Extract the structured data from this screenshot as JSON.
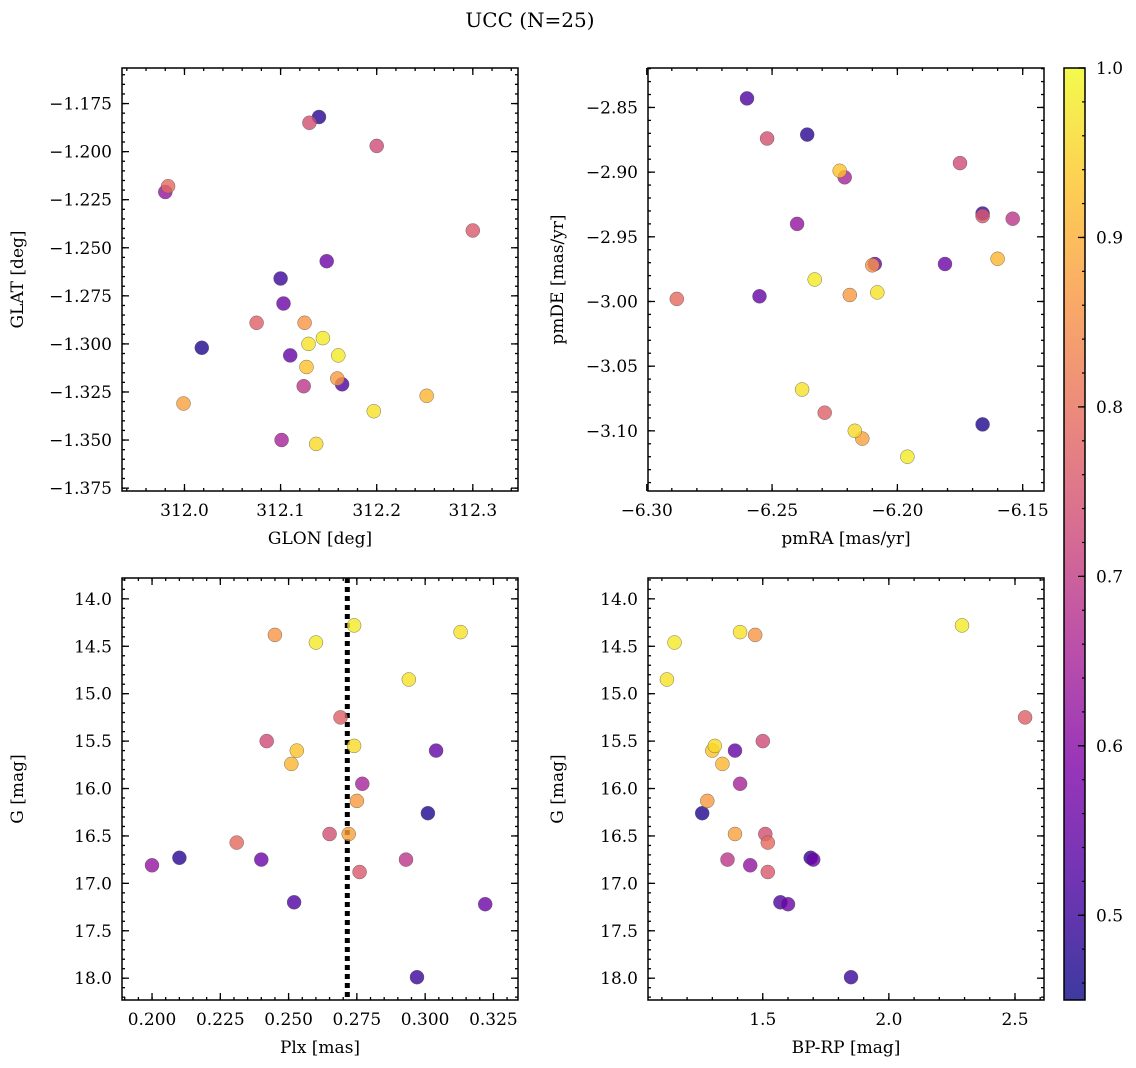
{
  "chart_data": {
    "title": "UCC (N=25)",
    "type": "scatter",
    "colorbar": {
      "label": "",
      "range": [
        0.45,
        1.0
      ],
      "ticks": [
        "0.5",
        "0.6",
        "0.7",
        "0.8",
        "0.9",
        "1.0"
      ],
      "tick_values": [
        0.5,
        0.6,
        0.7,
        0.8,
        0.9,
        1.0
      ],
      "colormap": "plasma"
    },
    "stars": [
      {
        "glon": 312.14,
        "glat": -1.182,
        "pmra": -6.236,
        "pmde": -2.871,
        "plx": 0.21,
        "g": 16.73,
        "bprp": 1.69,
        "prob": 0.48
      },
      {
        "glon": 312.13,
        "glat": -1.185,
        "pmra": -6.252,
        "pmde": -2.874,
        "plx": 0.265,
        "g": 16.48,
        "bprp": 1.51,
        "prob": 0.74
      },
      {
        "glon": 312.2,
        "glat": -1.197,
        "pmra": -6.175,
        "pmde": -2.893,
        "plx": 0.242,
        "g": 15.5,
        "bprp": 1.5,
        "prob": 0.73
      },
      {
        "glon": 311.983,
        "glat": -1.218,
        "pmra": -6.288,
        "pmde": -2.998,
        "plx": 0.231,
        "g": 16.57,
        "bprp": 1.52,
        "prob": 0.79
      },
      {
        "glon": 311.98,
        "glat": -1.221,
        "pmra": -6.24,
        "pmde": -2.94,
        "plx": 0.2,
        "g": 16.81,
        "bprp": 1.45,
        "prob": 0.62
      },
      {
        "glon": 312.3,
        "glat": -1.241,
        "pmra": -6.166,
        "pmde": -2.934,
        "plx": 0.276,
        "g": 16.88,
        "bprp": 1.52,
        "prob": 0.76
      },
      {
        "glon": 312.148,
        "glat": -1.257,
        "pmra": -6.209,
        "pmde": -2.971,
        "plx": 0.24,
        "g": 16.75,
        "bprp": 1.7,
        "prob": 0.56
      },
      {
        "glon": 312.1,
        "glat": -1.266,
        "pmra": -6.166,
        "pmde": -2.932,
        "plx": 0.297,
        "g": 17.99,
        "bprp": 1.85,
        "prob": 0.5
      },
      {
        "glon": 312.103,
        "glat": -1.279,
        "pmra": -6.181,
        "pmde": -2.971,
        "plx": 0.322,
        "g": 17.22,
        "bprp": 1.6,
        "prob": 0.56
      },
      {
        "glon": 312.075,
        "glat": -1.289,
        "pmra": -6.229,
        "pmde": -3.086,
        "plx": 0.269,
        "g": 15.25,
        "bprp": 2.54,
        "prob": 0.77
      },
      {
        "glon": 312.125,
        "glat": -1.289,
        "pmra": -6.21,
        "pmde": -2.972,
        "plx": 0.245,
        "g": 14.38,
        "bprp": 1.47,
        "prob": 0.86
      },
      {
        "glon": 312.144,
        "glat": -1.297,
        "pmra": -6.233,
        "pmde": -2.983,
        "plx": 0.274,
        "g": 14.28,
        "bprp": 2.29,
        "prob": 0.98
      },
      {
        "glon": 312.129,
        "glat": -1.3,
        "pmra": -6.208,
        "pmde": -2.993,
        "plx": 0.313,
        "g": 14.35,
        "bprp": 1.41,
        "prob": 0.97
      },
      {
        "glon": 312.018,
        "glat": -1.302,
        "pmra": -6.166,
        "pmde": -3.095,
        "plx": 0.301,
        "g": 16.26,
        "bprp": 1.26,
        "prob": 0.47
      },
      {
        "glon": 312.11,
        "glat": -1.306,
        "pmra": -6.255,
        "pmde": -2.996,
        "plx": 0.304,
        "g": 15.6,
        "bprp": 1.39,
        "prob": 0.55
      },
      {
        "glon": 312.16,
        "glat": -1.306,
        "pmra": -6.196,
        "pmde": -3.12,
        "plx": 0.26,
        "g": 14.46,
        "bprp": 1.15,
        "prob": 0.98
      },
      {
        "glon": 312.127,
        "glat": -1.312,
        "pmra": -6.223,
        "pmde": -2.899,
        "plx": 0.253,
        "g": 15.6,
        "bprp": 1.3,
        "prob": 0.93
      },
      {
        "glon": 312.159,
        "glat": -1.318,
        "pmra": -6.219,
        "pmde": -2.995,
        "plx": 0.275,
        "g": 16.13,
        "bprp": 1.28,
        "prob": 0.87
      },
      {
        "glon": 312.164,
        "glat": -1.321,
        "pmra": -6.26,
        "pmde": -2.843,
        "plx": 0.252,
        "g": 17.2,
        "bprp": 1.57,
        "prob": 0.52
      },
      {
        "glon": 312.124,
        "glat": -1.322,
        "pmra": -6.154,
        "pmde": -2.936,
        "plx": 0.293,
        "g": 16.75,
        "bprp": 1.36,
        "prob": 0.69
      },
      {
        "glon": 312.252,
        "glat": -1.327,
        "pmra": -6.16,
        "pmde": -2.967,
        "plx": 0.251,
        "g": 15.74,
        "bprp": 1.34,
        "prob": 0.91
      },
      {
        "glon": 311.999,
        "glat": -1.331,
        "pmra": -6.214,
        "pmde": -3.106,
        "plx": 0.272,
        "g": 16.48,
        "bprp": 1.39,
        "prob": 0.88
      },
      {
        "glon": 312.197,
        "glat": -1.335,
        "pmra": -6.238,
        "pmde": -3.068,
        "plx": 0.294,
        "g": 14.85,
        "bprp": 1.12,
        "prob": 0.97
      },
      {
        "glon": 312.101,
        "glat": -1.35,
        "pmra": -6.221,
        "pmde": -2.904,
        "plx": 0.277,
        "g": 15.95,
        "bprp": 1.41,
        "prob": 0.65
      },
      {
        "glon": 312.137,
        "glat": -1.352,
        "pmra": -6.217,
        "pmde": -3.1,
        "plx": 0.274,
        "g": 15.55,
        "bprp": 1.31,
        "prob": 0.96
      }
    ],
    "panels": [
      {
        "name": "glon-glat",
        "xkey": "glon",
        "ykey": "glat",
        "xlabel": "GLON [deg]",
        "ylabel": "GLAT [deg]",
        "xlim": [
          311.935,
          312.347
        ],
        "ylim": [
          -1.3765,
          -1.1565
        ],
        "y_inverted": false,
        "xticks": [
          312.0,
          312.1,
          312.2,
          312.3
        ],
        "xticklabels": [
          "312.0",
          "312.1",
          "312.2",
          "312.3"
        ],
        "xminor": 0.02,
        "yticks": [
          -1.175,
          -1.2,
          -1.225,
          -1.25,
          -1.275,
          -1.3,
          -1.325,
          -1.35,
          -1.375
        ],
        "yticklabels": [
          "−1.175",
          "−1.200",
          "−1.225",
          "−1.250",
          "−1.275",
          "−1.300",
          "−1.325",
          "−1.350",
          "−1.375"
        ],
        "yminor": 0.005
      },
      {
        "name": "pmra-pmde",
        "xkey": "pmra",
        "ykey": "pmde",
        "xlabel": "pmRA [mas/yr]",
        "ylabel": "pmDE [mas/yr]",
        "xlim": [
          -6.2995,
          -6.1415
        ],
        "ylim": [
          -3.1465,
          -2.8195
        ],
        "y_inverted": false,
        "xticks": [
          -6.3,
          -6.25,
          -6.2,
          -6.15
        ],
        "xticklabels": [
          "−6.30",
          "−6.25",
          "−6.20",
          "−6.15"
        ],
        "xminor": 0.01,
        "yticks": [
          -2.85,
          -2.9,
          -2.95,
          -3.0,
          -3.05,
          -3.1
        ],
        "yticklabels": [
          "−2.85",
          "−2.90",
          "−2.95",
          "−3.00",
          "−3.05",
          "−3.10"
        ],
        "yminor": 0.01
      },
      {
        "name": "plx-g",
        "xkey": "plx",
        "ykey": "g",
        "xlabel": "Plx [mas]",
        "ylabel": "G [mag]",
        "xlim": [
          0.189,
          0.334
        ],
        "ylim": [
          18.23,
          13.78
        ],
        "y_inverted": true,
        "xticks": [
          0.2,
          0.225,
          0.25,
          0.275,
          0.3,
          0.325
        ],
        "xticklabels": [
          "0.200",
          "0.225",
          "0.250",
          "0.275",
          "0.300",
          "0.325"
        ],
        "xminor": 0.005,
        "yticks": [
          14.0,
          14.5,
          15.0,
          15.5,
          16.0,
          16.5,
          17.0,
          17.5,
          18.0
        ],
        "yticklabels": [
          "14.0",
          "14.5",
          "15.0",
          "15.5",
          "16.0",
          "16.5",
          "17.0",
          "17.5",
          "18.0"
        ],
        "yminor": 0.1,
        "vline": 0.2715
      },
      {
        "name": "bprp-g",
        "xkey": "bprp",
        "ykey": "g",
        "xlabel": "BP-RP [mag]",
        "ylabel": "G [mag]",
        "xlim": [
          1.045,
          2.615
        ],
        "ylim": [
          18.23,
          13.78
        ],
        "y_inverted": true,
        "xticks": [
          1.5,
          2.0,
          2.5
        ],
        "xticklabels": [
          "1.5",
          "2.0",
          "2.5"
        ],
        "xminor": 0.1,
        "yticks": [
          14.0,
          14.5,
          15.0,
          15.5,
          16.0,
          16.5,
          17.0,
          17.5,
          18.0
        ],
        "yticklabels": [
          "14.0",
          "14.5",
          "15.0",
          "15.5",
          "16.0",
          "16.5",
          "17.0",
          "17.5",
          "18.0"
        ],
        "yminor": 0.1
      }
    ]
  }
}
